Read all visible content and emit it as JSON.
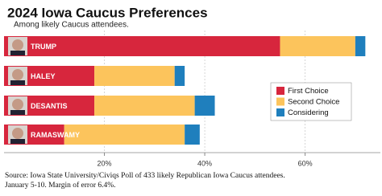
{
  "chart_data": {
    "type": "stacked-bar-horizontal",
    "title": "2024 Iowa Caucus Preferences",
    "subtitle": "Among likely Caucus attendees.",
    "categories": [
      "TRUMP",
      "HALEY",
      "DESANTIS",
      "RAMASWAMY"
    ],
    "series": [
      {
        "name": "First Choice",
        "color": "#d7263d",
        "values": [
          55,
          18,
          18,
          12
        ]
      },
      {
        "name": "Second Choice",
        "color": "#fcc45c",
        "values": [
          15,
          16,
          20,
          24
        ]
      },
      {
        "name": "Considering",
        "color": "#1f7fbd",
        "values": [
          2,
          2,
          4,
          3
        ]
      }
    ],
    "xlim": [
      0,
      75
    ],
    "xticks": [
      {
        "value": 20,
        "label": "20%"
      },
      {
        "value": 40,
        "label": "40%"
      },
      {
        "value": 60,
        "label": "60%"
      }
    ],
    "grid": true,
    "source": [
      "Source: Iowa State University/Civiqs Poll of 433 likely Republican Iowa Caucus attendees.",
      "January 5-10. Margin of error 6.4%."
    ]
  }
}
